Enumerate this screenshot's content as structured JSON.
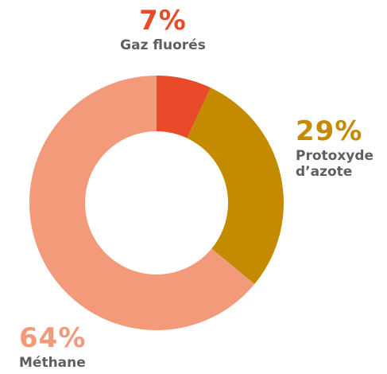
{
  "chart_data": {
    "type": "donut",
    "categories": [
      "Gaz fluorés",
      "Protoxyde d’azote",
      "Méthane"
    ],
    "values": [
      7,
      29,
      64
    ],
    "value_labels": [
      "7%",
      "29%",
      "64%"
    ],
    "colors": [
      "#e84a2a",
      "#c48a00",
      "#f39a7a"
    ]
  }
}
